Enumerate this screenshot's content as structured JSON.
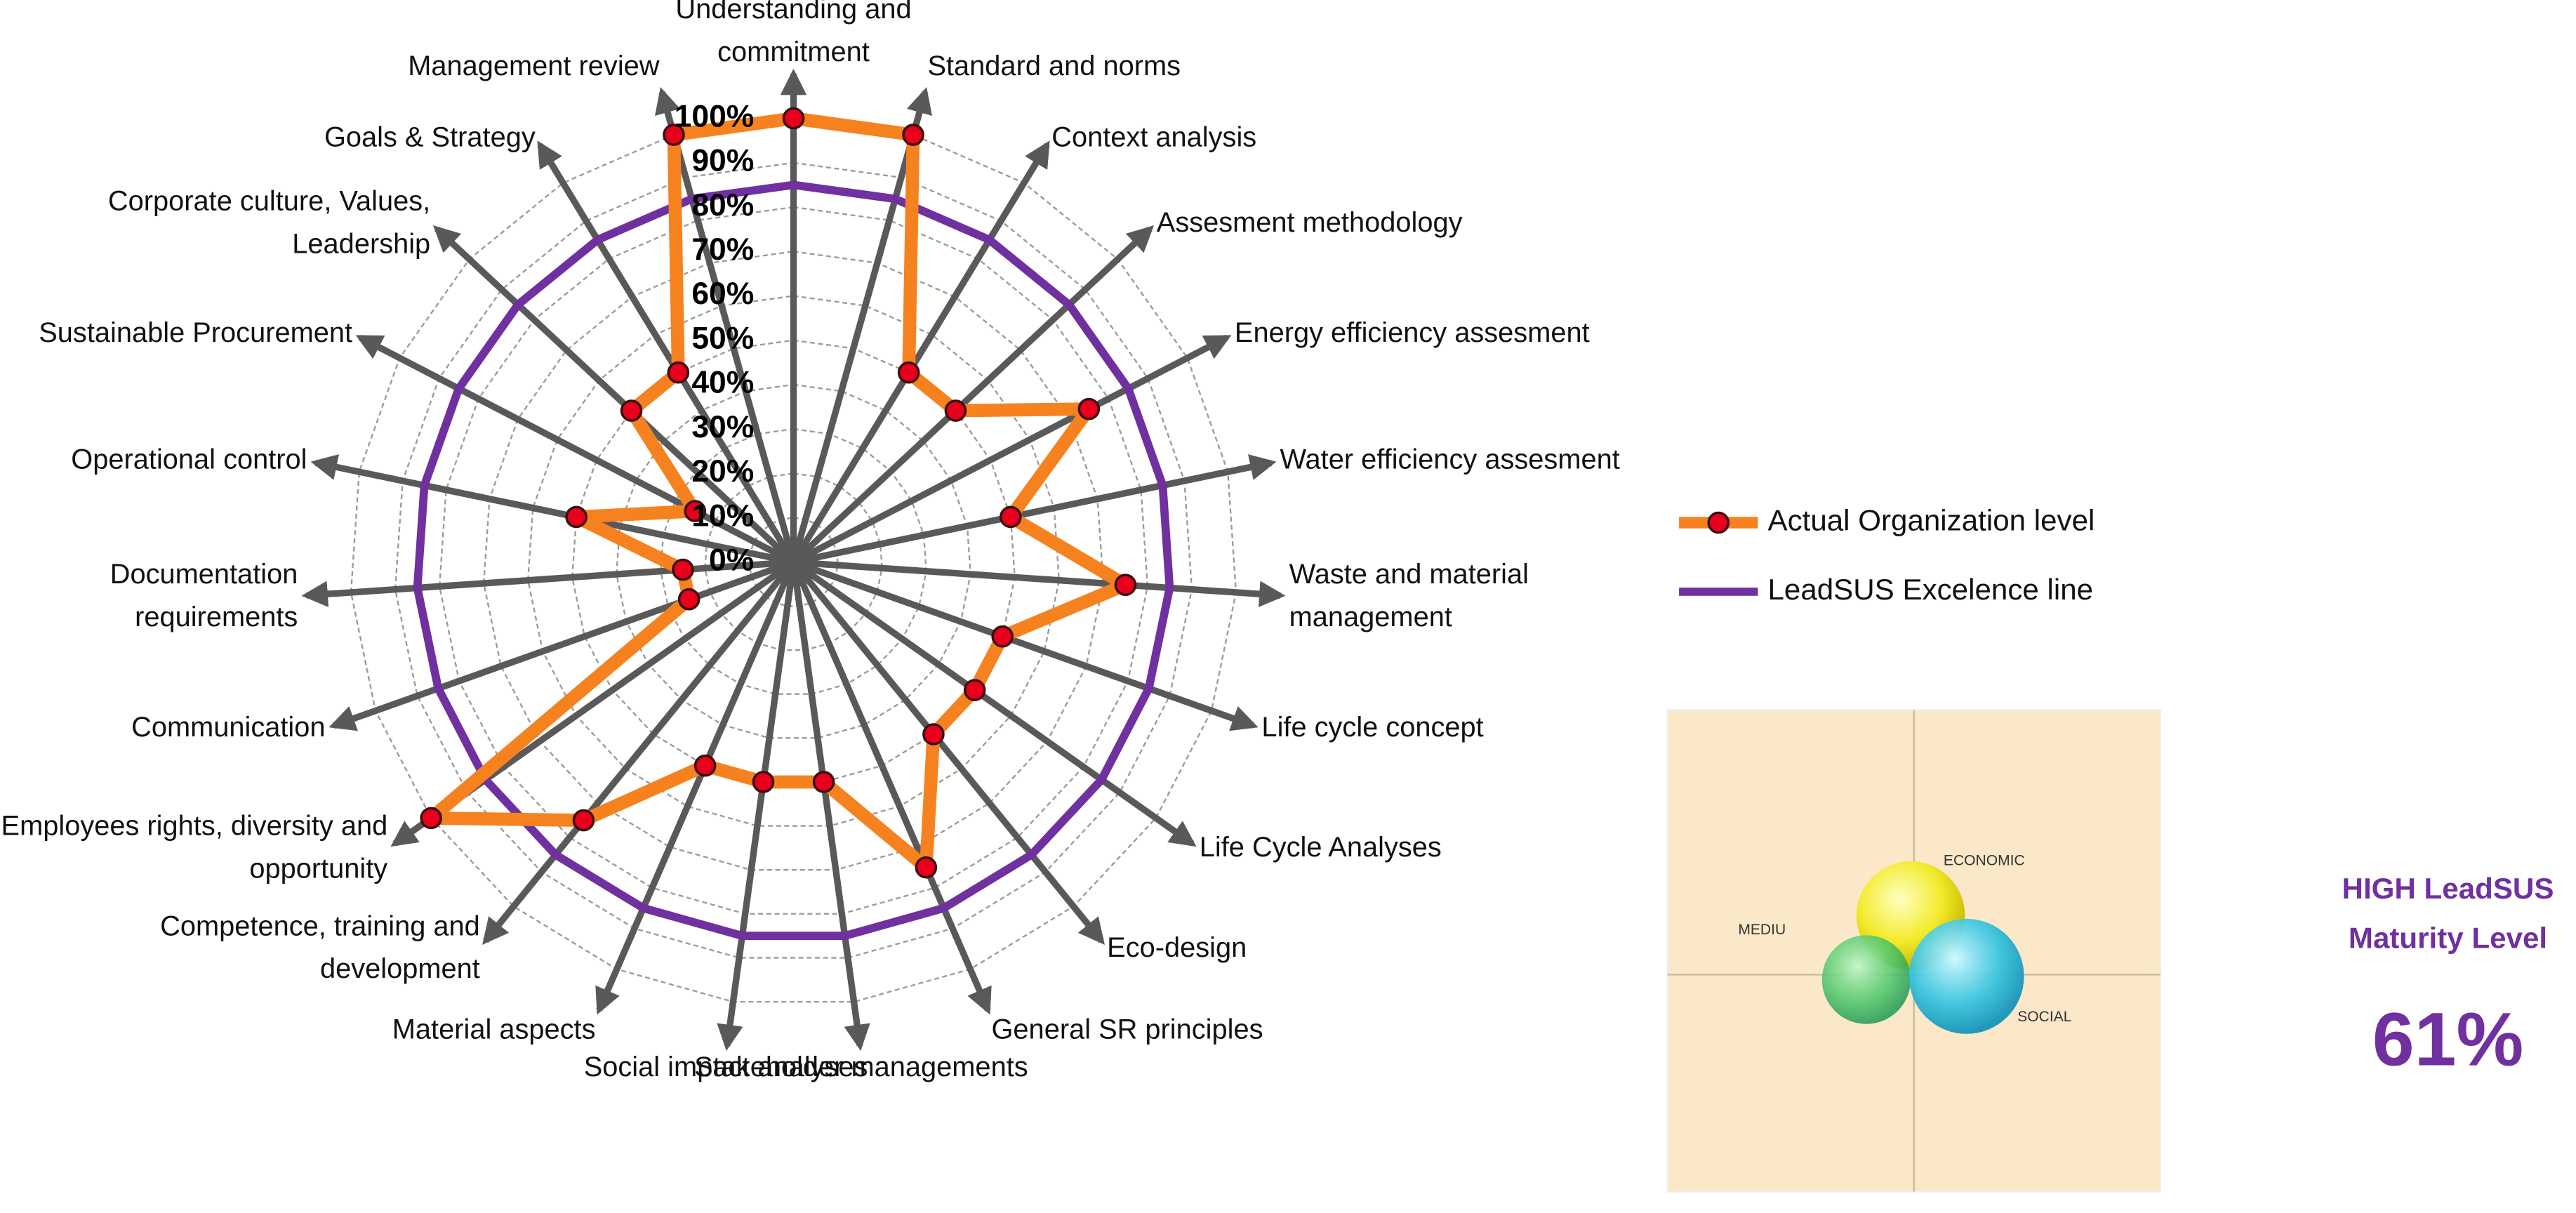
{
  "chart_data": {
    "type": "radar",
    "categories": [
      "Understanding and commitment",
      "Standard and norms",
      "Context analysis",
      "Assesment methodology",
      "Energy efficiency assesment",
      "Water efficiency assesment",
      "Waste and material management",
      "Life cycle concept",
      "Life Cycle Analyses",
      "Eco-design",
      "General SR principles",
      "Stakeholder managements",
      "Social impact analyses",
      "Material aspects",
      "Competence, training and development",
      "Employees rights, diversity and opportunity",
      "Communication",
      "Documentation requirements",
      "Operational control",
      "Sustainable Procurement",
      "Corporate culture, Values, Leadership",
      "Goals & Strategy",
      "Management review"
    ],
    "series": [
      {
        "name": "Actual Organization level",
        "color": "#f5821f",
        "marker_color": "#e8001c",
        "markers": true,
        "values": [
          100,
          100,
          50,
          50,
          75,
          50,
          75,
          50,
          50,
          50,
          75,
          50,
          50,
          50,
          75,
          100,
          25,
          25,
          50,
          25,
          50,
          50,
          100
        ]
      },
      {
        "name": "LeadSUS Excelence line",
        "color": "#7030a0",
        "markers": false,
        "values": [
          85,
          85,
          85,
          85,
          85,
          85,
          85,
          85,
          85,
          85,
          85,
          85,
          85,
          85,
          85,
          85,
          85,
          85,
          85,
          85,
          85,
          85,
          85
        ]
      }
    ],
    "rlim": [
      0,
      100
    ],
    "rticks": [
      {
        "value": 0,
        "label": "0%"
      },
      {
        "value": 10,
        "label": "10%"
      },
      {
        "value": 20,
        "label": "20%"
      },
      {
        "value": 30,
        "label": "30%"
      },
      {
        "value": 40,
        "label": "40%"
      },
      {
        "value": 50,
        "label": "50%"
      },
      {
        "value": 60,
        "label": "60%"
      },
      {
        "value": 70,
        "label": "70%"
      },
      {
        "value": 80,
        "label": "80%"
      },
      {
        "value": 90,
        "label": "90%"
      },
      {
        "value": 100,
        "label": "100%"
      }
    ],
    "grid": true,
    "legend": "right"
  },
  "panel": {
    "labels": [
      "ECONOMIC",
      "MEDIU",
      "SOCIAL"
    ]
  },
  "maturity": {
    "lines": [
      "HIGH LeadSUS",
      "Maturity Level"
    ],
    "score": "61%"
  }
}
